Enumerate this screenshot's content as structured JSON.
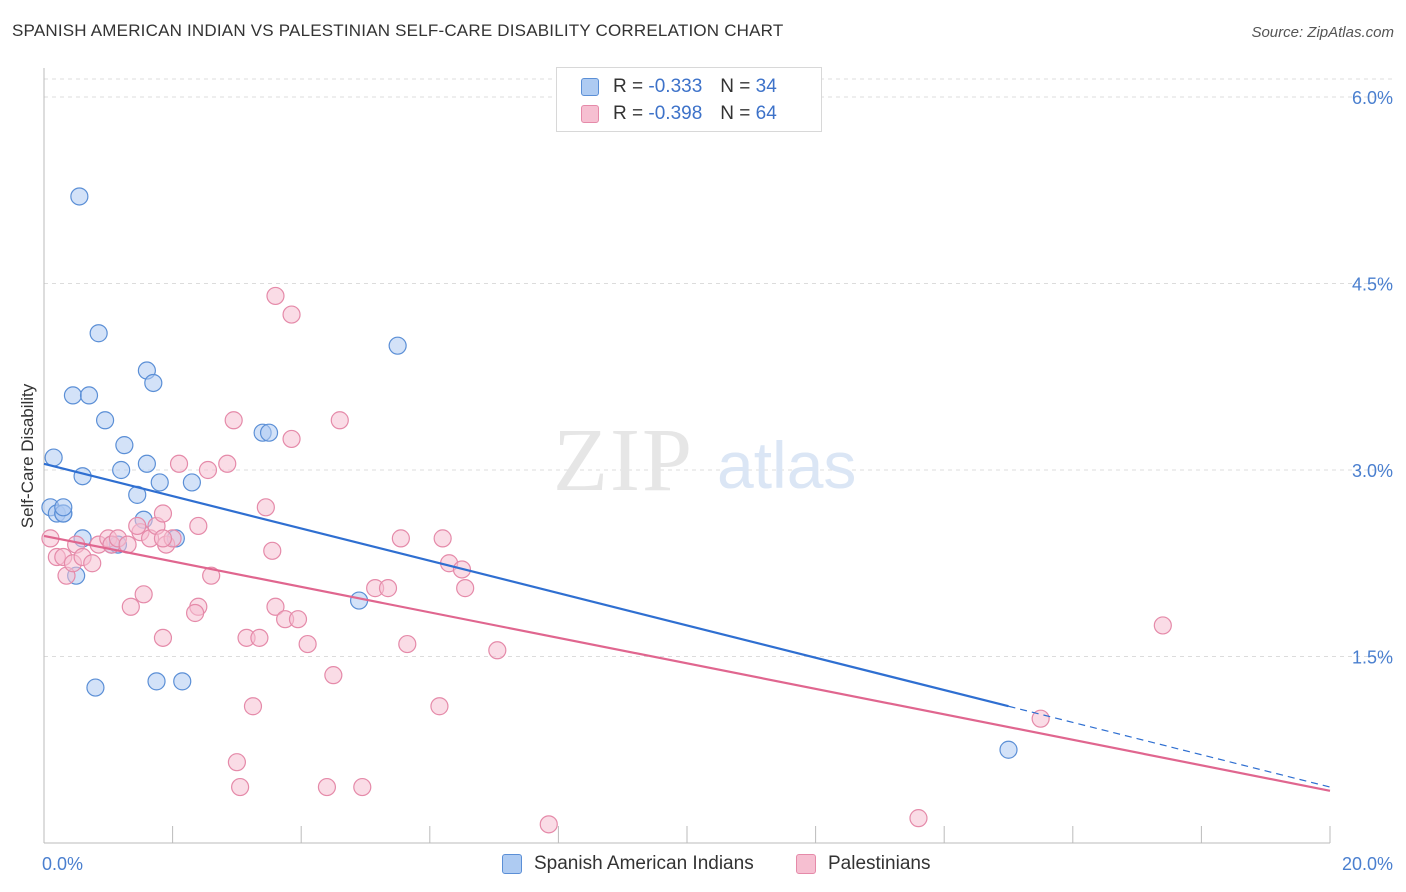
{
  "header": {
    "title": "SPANISH AMERICAN INDIAN VS PALESTINIAN SELF-CARE DISABILITY CORRELATION CHART",
    "source": "Source: ZipAtlas.com"
  },
  "watermark": {
    "zip": "ZIP",
    "atlas": "atlas"
  },
  "legend": {
    "rows": [
      {
        "r_label": "R =",
        "r_value": "-0.333",
        "n_label": "N =",
        "n_value": "34"
      },
      {
        "r_label": "R =",
        "r_value": "-0.398",
        "n_label": "N =",
        "n_value": "64"
      }
    ]
  },
  "bottom_legend": [
    "Spanish American Indians",
    "Palestinians"
  ],
  "colors": {
    "blue_fill": "#aecbf2",
    "blue_stroke": "#5b8fd6",
    "blue_line": "#2f6fd1",
    "pink_fill": "#f6bfd1",
    "pink_stroke": "#e58aa9",
    "pink_line": "#e0668f",
    "tick_text": "#4a7fcf",
    "grid": "#dcdcdc"
  },
  "chart_data": {
    "type": "scatter",
    "title": "SPANISH AMERICAN INDIAN VS PALESTINIAN SELF-CARE DISABILITY CORRELATION CHART",
    "xlabel": "",
    "ylabel": "Self-Care Disability",
    "xlim": [
      0,
      20
    ],
    "ylim": [
      0,
      6.2
    ],
    "x_tick_labels": [
      "0.0%",
      "20.0%"
    ],
    "y_ticks": [
      1.5,
      3.0,
      4.5,
      6.0
    ],
    "y_tick_labels": [
      "1.5%",
      "3.0%",
      "4.5%",
      "6.0%"
    ],
    "grid": true,
    "legend_position": "top-center",
    "series": [
      {
        "name": "Spanish American Indians",
        "color": "#5b8fd6",
        "r": -0.333,
        "n": 34,
        "points": [
          [
            0.1,
            2.7
          ],
          [
            0.2,
            2.65
          ],
          [
            0.3,
            2.65
          ],
          [
            0.3,
            2.65
          ],
          [
            0.15,
            3.1
          ],
          [
            0.6,
            2.45
          ],
          [
            0.5,
            2.15
          ],
          [
            0.55,
            5.2
          ],
          [
            0.85,
            4.1
          ],
          [
            0.45,
            3.6
          ],
          [
            0.7,
            3.6
          ],
          [
            0.95,
            3.4
          ],
          [
            1.25,
            3.2
          ],
          [
            1.6,
            3.8
          ],
          [
            1.7,
            3.7
          ],
          [
            1.2,
            3.0
          ],
          [
            1.6,
            3.05
          ],
          [
            0.6,
            2.95
          ],
          [
            1.8,
            2.9
          ],
          [
            1.45,
            2.8
          ],
          [
            1.55,
            2.6
          ],
          [
            2.3,
            2.9
          ],
          [
            2.05,
            2.45
          ],
          [
            1.05,
            2.4
          ],
          [
            1.15,
            2.4
          ],
          [
            0.8,
            1.25
          ],
          [
            1.75,
            1.3
          ],
          [
            2.15,
            1.3
          ],
          [
            3.4,
            3.3
          ],
          [
            3.5,
            3.3
          ],
          [
            5.5,
            4.0
          ],
          [
            4.9,
            1.95
          ],
          [
            15.0,
            0.75
          ],
          [
            0.3,
            2.7
          ]
        ],
        "trend": {
          "x0": 0,
          "y0": 3.05,
          "x1": 15.0,
          "y1": 1.1,
          "dashed_to_x": 20,
          "dashed_to_y": 0.45
        }
      },
      {
        "name": "Palestinians",
        "color": "#e58aa9",
        "points": [
          [
            0.1,
            2.45
          ],
          [
            0.2,
            2.3
          ],
          [
            0.3,
            2.3
          ],
          [
            0.35,
            2.15
          ],
          [
            0.45,
            2.25
          ],
          [
            0.5,
            2.4
          ],
          [
            0.6,
            2.3
          ],
          [
            0.75,
            2.25
          ],
          [
            0.85,
            2.4
          ],
          [
            1.0,
            2.45
          ],
          [
            1.05,
            2.4
          ],
          [
            1.15,
            2.45
          ],
          [
            1.3,
            2.4
          ],
          [
            1.5,
            2.5
          ],
          [
            1.45,
            2.55
          ],
          [
            1.65,
            2.45
          ],
          [
            1.75,
            2.55
          ],
          [
            1.85,
            2.65
          ],
          [
            1.9,
            2.4
          ],
          [
            2.0,
            2.45
          ],
          [
            2.1,
            3.05
          ],
          [
            2.4,
            2.55
          ],
          [
            2.55,
            3.0
          ],
          [
            2.6,
            2.15
          ],
          [
            1.35,
            1.9
          ],
          [
            1.55,
            2.0
          ],
          [
            2.4,
            1.9
          ],
          [
            1.85,
            1.65
          ],
          [
            1.85,
            2.45
          ],
          [
            2.35,
            1.85
          ],
          [
            2.85,
            3.05
          ],
          [
            2.95,
            3.4
          ],
          [
            3.15,
            1.65
          ],
          [
            3.35,
            1.65
          ],
          [
            3.6,
            1.9
          ],
          [
            3.75,
            1.8
          ],
          [
            3.95,
            1.8
          ],
          [
            4.1,
            1.6
          ],
          [
            3.45,
            2.7
          ],
          [
            3.55,
            2.35
          ],
          [
            3.85,
            4.25
          ],
          [
            3.6,
            4.4
          ],
          [
            3.85,
            3.25
          ],
          [
            4.6,
            3.4
          ],
          [
            4.5,
            1.35
          ],
          [
            3.25,
            1.1
          ],
          [
            5.15,
            2.05
          ],
          [
            5.35,
            2.05
          ],
          [
            5.55,
            2.45
          ],
          [
            5.65,
            1.6
          ],
          [
            6.2,
            2.45
          ],
          [
            6.3,
            2.25
          ],
          [
            6.5,
            2.2
          ],
          [
            6.55,
            2.05
          ],
          [
            7.05,
            1.55
          ],
          [
            6.15,
            1.1
          ],
          [
            3.0,
            0.65
          ],
          [
            3.05,
            0.45
          ],
          [
            4.4,
            0.45
          ],
          [
            4.95,
            0.45
          ],
          [
            7.85,
            0.15
          ],
          [
            15.5,
            1.0
          ],
          [
            17.4,
            1.75
          ],
          [
            13.6,
            0.2
          ]
        ],
        "trend": {
          "x0": 0,
          "y0": 2.47,
          "x1": 20,
          "y1": 0.42
        }
      }
    ]
  }
}
